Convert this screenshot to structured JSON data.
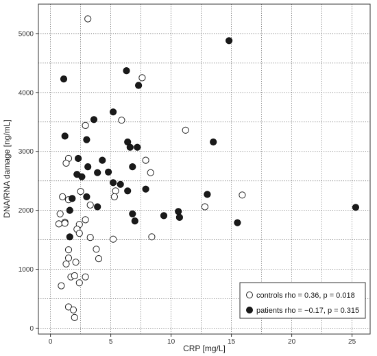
{
  "chart_data": {
    "type": "scatter",
    "xlabel": "CRP [mg/L]",
    "ylabel": "DNA/RNA damage [ng/mL]",
    "xlim": [
      -1,
      26.5
    ],
    "ylim": [
      -100,
      5500
    ],
    "x_ticks": [
      0,
      5,
      10,
      15,
      20,
      25
    ],
    "y_ticks": [
      0,
      1000,
      2000,
      3000,
      4000,
      5000
    ],
    "grid": true,
    "legend_position": "bottom-right",
    "series": [
      {
        "name": "controls",
        "legend_label": "controls rho = 0.36, p = 0.018",
        "marker": "open-circle",
        "color": "#ffffff",
        "points": [
          [
            3.1,
            5250
          ],
          [
            7.6,
            4250
          ],
          [
            5.9,
            3530
          ],
          [
            11.2,
            3360
          ],
          [
            2.9,
            3440
          ],
          [
            1.5,
            2880
          ],
          [
            1.3,
            2800
          ],
          [
            7.9,
            2850
          ],
          [
            8.3,
            2640
          ],
          [
            2.5,
            2320
          ],
          [
            5.4,
            2330
          ],
          [
            5.3,
            2230
          ],
          [
            15.9,
            2260
          ],
          [
            12.8,
            2060
          ],
          [
            1.0,
            2230
          ],
          [
            1.5,
            2180
          ],
          [
            3.3,
            2090
          ],
          [
            0.8,
            1940
          ],
          [
            0.7,
            1770
          ],
          [
            1.2,
            1800
          ],
          [
            1.2,
            1780
          ],
          [
            2.9,
            1840
          ],
          [
            2.4,
            1760
          ],
          [
            2.2,
            1680
          ],
          [
            2.4,
            1610
          ],
          [
            3.3,
            1540
          ],
          [
            5.2,
            1510
          ],
          [
            8.4,
            1550
          ],
          [
            1.5,
            1330
          ],
          [
            3.8,
            1340
          ],
          [
            1.5,
            1190
          ],
          [
            4.0,
            1180
          ],
          [
            2.1,
            1120
          ],
          [
            1.3,
            1090
          ],
          [
            1.7,
            870
          ],
          [
            2.0,
            890
          ],
          [
            2.9,
            870
          ],
          [
            2.4,
            770
          ],
          [
            0.9,
            720
          ],
          [
            1.5,
            360
          ],
          [
            1.9,
            310
          ],
          [
            2.0,
            180
          ]
        ]
      },
      {
        "name": "patients",
        "legend_label": "patients rho = −0.17, p = 0.315",
        "marker": "filled-circle",
        "color": "#1a1a1a",
        "points": [
          [
            14.8,
            4880
          ],
          [
            6.3,
            4370
          ],
          [
            1.1,
            4230
          ],
          [
            7.3,
            4120
          ],
          [
            5.2,
            3670
          ],
          [
            3.6,
            3540
          ],
          [
            1.2,
            3260
          ],
          [
            3.0,
            3200
          ],
          [
            6.4,
            3160
          ],
          [
            13.5,
            3160
          ],
          [
            6.6,
            3070
          ],
          [
            7.2,
            3070
          ],
          [
            2.3,
            2880
          ],
          [
            4.3,
            2850
          ],
          [
            3.1,
            2740
          ],
          [
            6.8,
            2740
          ],
          [
            4.8,
            2650
          ],
          [
            3.9,
            2640
          ],
          [
            2.2,
            2610
          ],
          [
            2.6,
            2570
          ],
          [
            5.2,
            2470
          ],
          [
            5.8,
            2440
          ],
          [
            6.4,
            2330
          ],
          [
            7.9,
            2360
          ],
          [
            13.0,
            2270
          ],
          [
            1.8,
            2200
          ],
          [
            3.0,
            2230
          ],
          [
            3.9,
            2060
          ],
          [
            1.6,
            2000
          ],
          [
            10.6,
            1980
          ],
          [
            6.8,
            1940
          ],
          [
            9.4,
            1910
          ],
          [
            10.7,
            1880
          ],
          [
            7.0,
            1820
          ],
          [
            15.5,
            1790
          ],
          [
            25.3,
            2050
          ],
          [
            1.6,
            1550
          ]
        ]
      }
    ]
  }
}
